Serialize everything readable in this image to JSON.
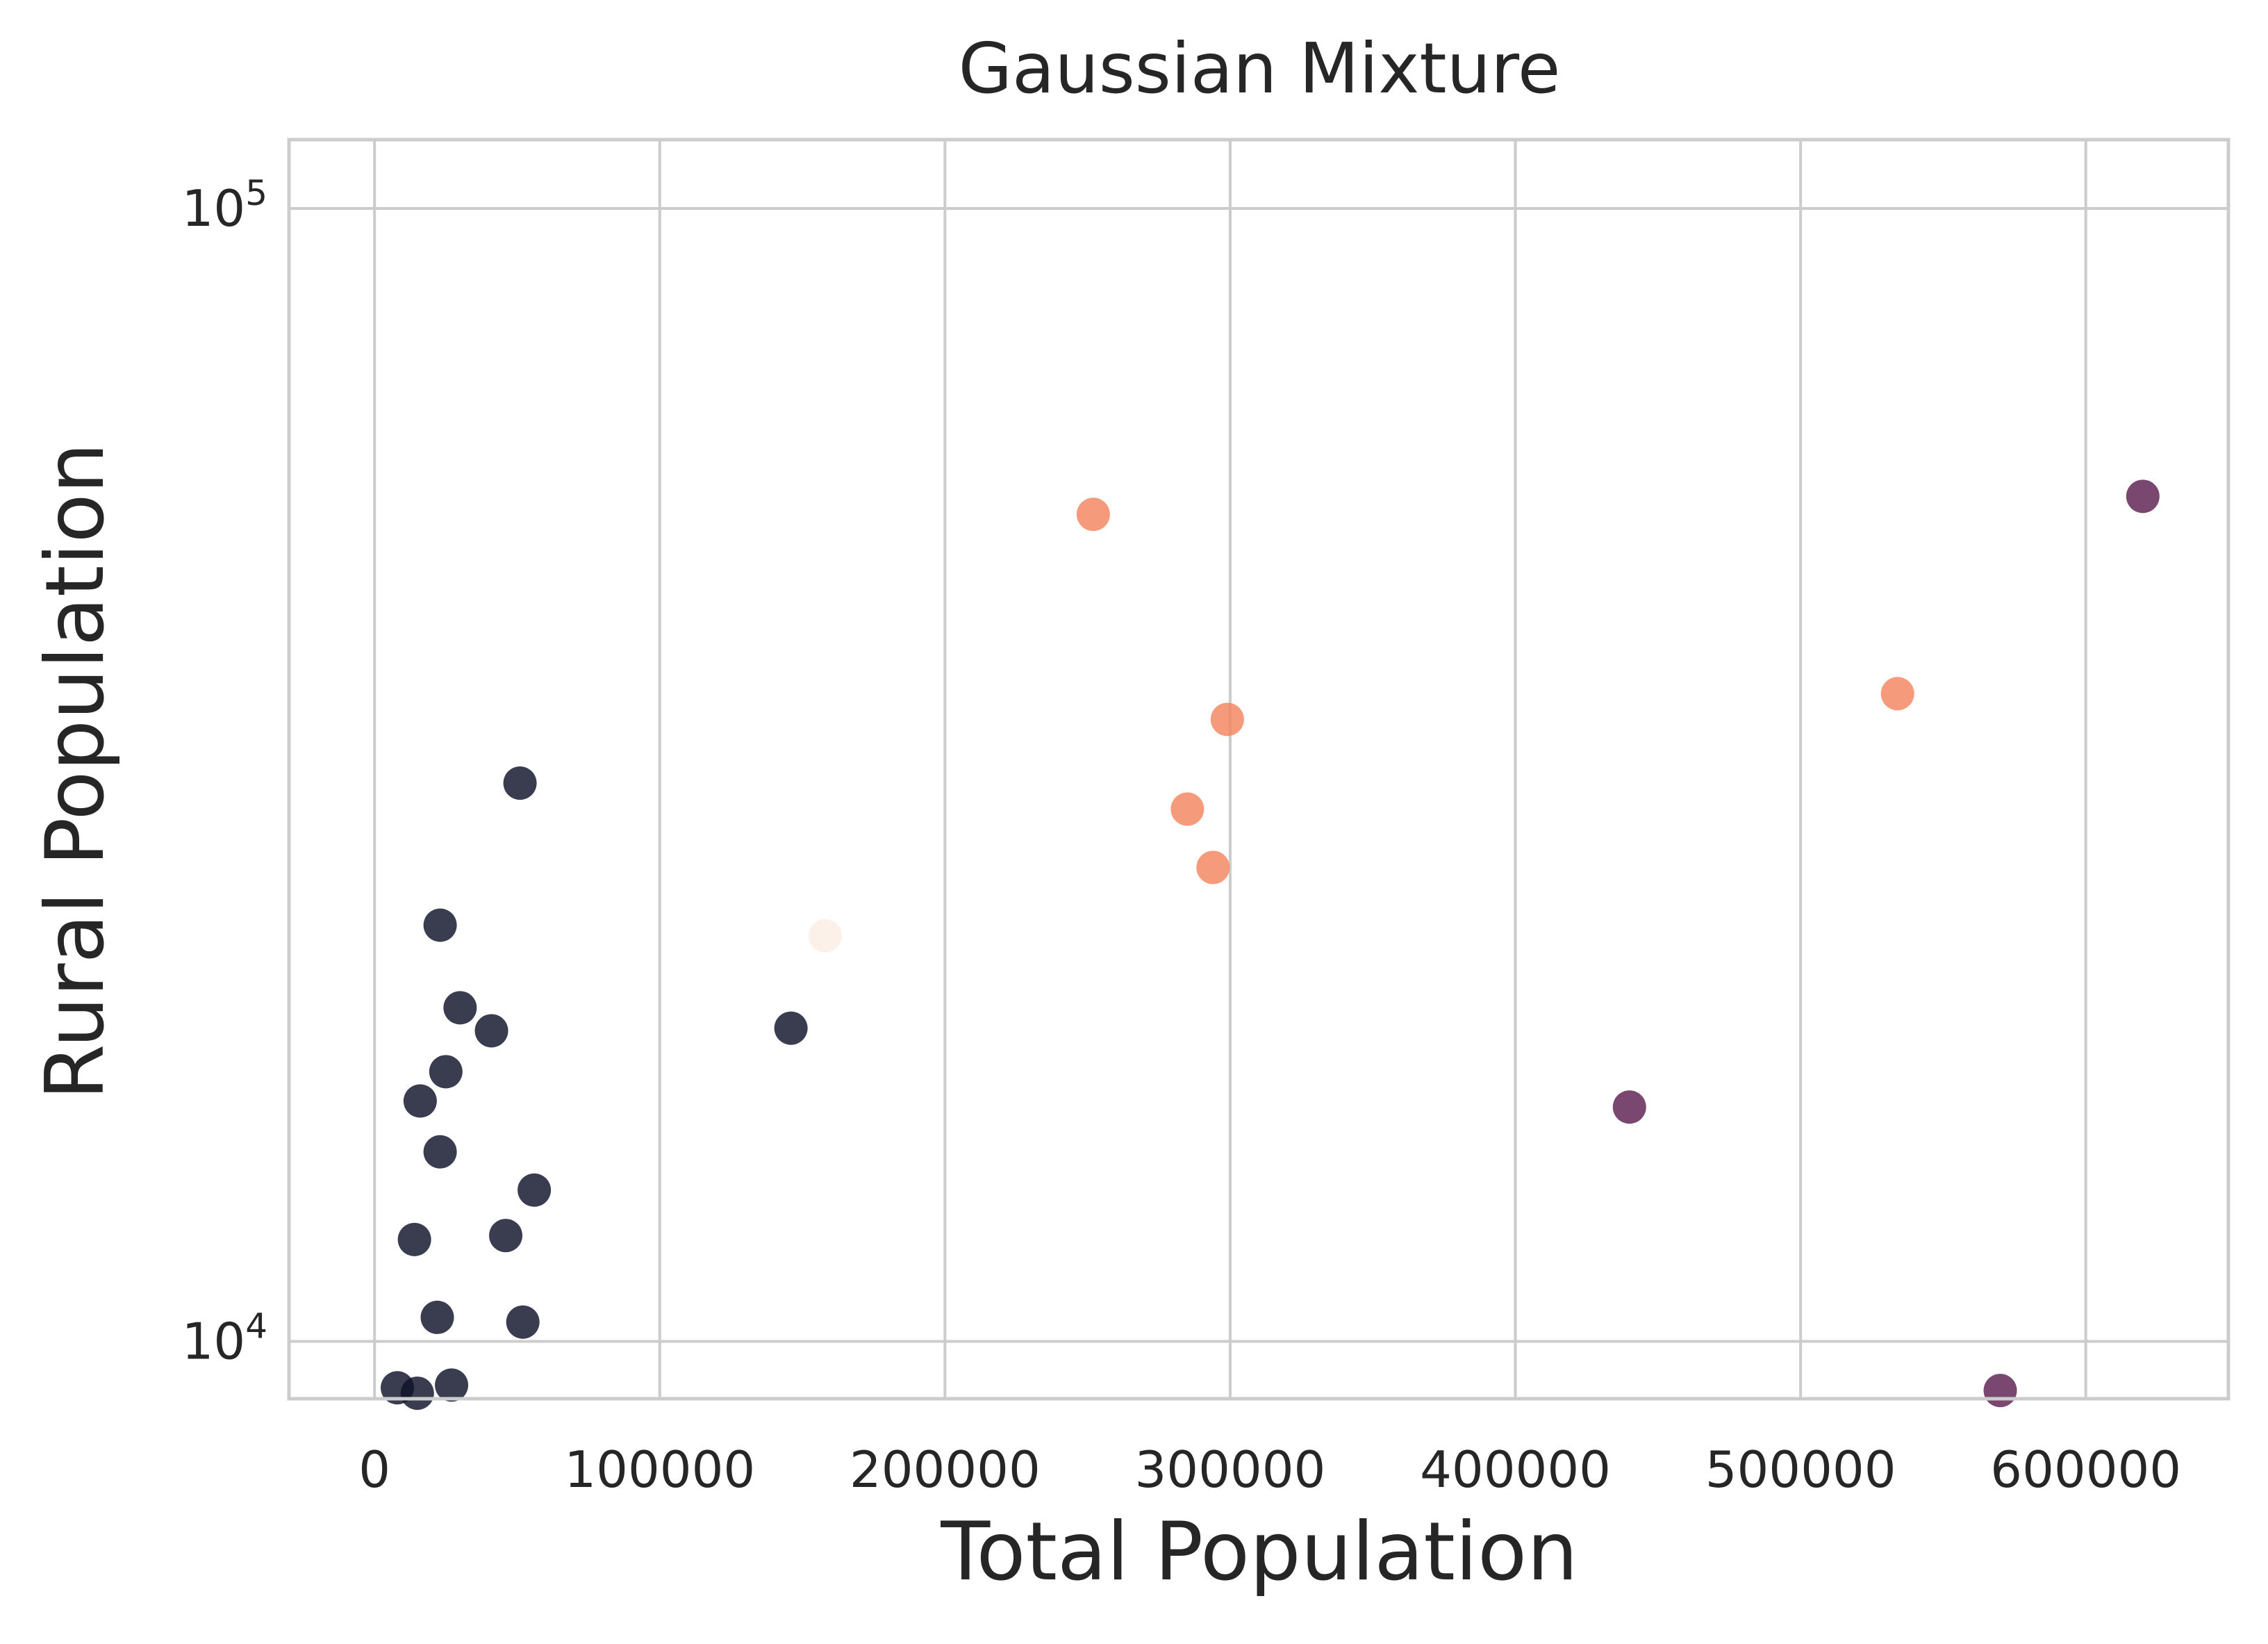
{
  "chart_data": {
    "type": "scatter",
    "title": "Gaussian Mixture",
    "xlabel": "Total Population",
    "ylabel": "Rural Population",
    "xlim": [
      -30000,
      650000
    ],
    "ylim": [
      8900,
      115000
    ],
    "yscale": "log",
    "grid": true,
    "x_ticks": [
      0,
      100000,
      200000,
      300000,
      400000,
      500000,
      600000
    ],
    "x_tick_labels": [
      "0",
      "100000",
      "200000",
      "300000",
      "400000",
      "500000",
      "600000"
    ],
    "y_ticks": [
      {
        "value": 10000,
        "base": "10",
        "exp": "4"
      },
      {
        "value": 100000,
        "base": "10",
        "exp": "5"
      }
    ],
    "colors": {
      "cluster_0": "#0f1129",
      "cluster_1": "#f3845e",
      "cluster_2": "#5b1e51",
      "cluster_3": "#fbeee3"
    },
    "points": [
      {
        "x": 8000,
        "y": 9100,
        "cluster": 0
      },
      {
        "x": 15000,
        "y": 9000,
        "cluster": 0
      },
      {
        "x": 27000,
        "y": 9150,
        "cluster": 0
      },
      {
        "x": 14000,
        "y": 12300,
        "cluster": 0
      },
      {
        "x": 22000,
        "y": 10500,
        "cluster": 0
      },
      {
        "x": 52000,
        "y": 10400,
        "cluster": 0
      },
      {
        "x": 46000,
        "y": 12400,
        "cluster": 0
      },
      {
        "x": 56000,
        "y": 13600,
        "cluster": 0
      },
      {
        "x": 23000,
        "y": 14700,
        "cluster": 0
      },
      {
        "x": 16000,
        "y": 16300,
        "cluster": 0
      },
      {
        "x": 25000,
        "y": 17300,
        "cluster": 0
      },
      {
        "x": 41000,
        "y": 18800,
        "cluster": 0
      },
      {
        "x": 30000,
        "y": 19700,
        "cluster": 0
      },
      {
        "x": 23000,
        "y": 23300,
        "cluster": 0
      },
      {
        "x": 51000,
        "y": 31100,
        "cluster": 0
      },
      {
        "x": 146000,
        "y": 18900,
        "cluster": 0
      },
      {
        "x": 158000,
        "y": 22800,
        "cluster": 3
      },
      {
        "x": 252000,
        "y": 53700,
        "cluster": 1
      },
      {
        "x": 299000,
        "y": 35400,
        "cluster": 1
      },
      {
        "x": 285000,
        "y": 29500,
        "cluster": 1
      },
      {
        "x": 294000,
        "y": 26200,
        "cluster": 1
      },
      {
        "x": 534000,
        "y": 37300,
        "cluster": 1
      },
      {
        "x": 620000,
        "y": 55700,
        "cluster": 2
      },
      {
        "x": 440000,
        "y": 16100,
        "cluster": 2
      },
      {
        "x": 570000,
        "y": 9050,
        "cluster": 2
      }
    ]
  }
}
